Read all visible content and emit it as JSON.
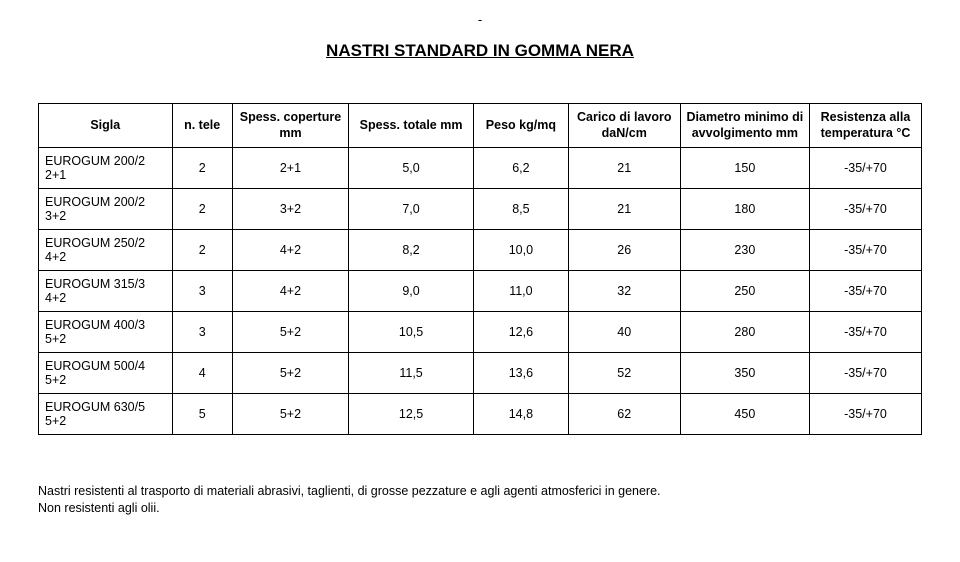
{
  "dash": "-",
  "title": "NASTRI STANDARD IN GOMMA NERA",
  "table": {
    "columns": [
      "Sigla",
      "n. tele",
      "Spess. coperture mm",
      "Spess. totale mm",
      "Peso kg/mq",
      "Carico di lavoro daN/cm",
      "Diametro minimo di avvolgimento mm",
      "Resistenza alla temperatura °C"
    ],
    "rows": [
      [
        "EUROGUM 200/2 2+1",
        "2",
        "2+1",
        "5,0",
        "6,2",
        "21",
        "150",
        "-35/+70"
      ],
      [
        "EUROGUM 200/2 3+2",
        "2",
        "3+2",
        "7,0",
        "8,5",
        "21",
        "180",
        "-35/+70"
      ],
      [
        "EUROGUM 250/2 4+2",
        "2",
        "4+2",
        "8,2",
        "10,0",
        "26",
        "230",
        "-35/+70"
      ],
      [
        "EUROGUM 315/3 4+2",
        "3",
        "4+2",
        "9,0",
        "11,0",
        "32",
        "250",
        "-35/+70"
      ],
      [
        "EUROGUM 400/3 5+2",
        "3",
        "5+2",
        "10,5",
        "12,6",
        "40",
        "280",
        "-35/+70"
      ],
      [
        "EUROGUM 500/4 5+2",
        "4",
        "5+2",
        "11,5",
        "13,6",
        "52",
        "350",
        "-35/+70"
      ],
      [
        "EUROGUM 630/5 5+2",
        "5",
        "5+2",
        "12,5",
        "14,8",
        "62",
        "450",
        "-35/+70"
      ]
    ]
  },
  "footnote_line1": "Nastri resistenti al trasporto di materiali abrasivi, taglienti, di grosse pezzature e agli agenti atmosferici in genere.",
  "footnote_line2": "Non resistenti agli olii."
}
